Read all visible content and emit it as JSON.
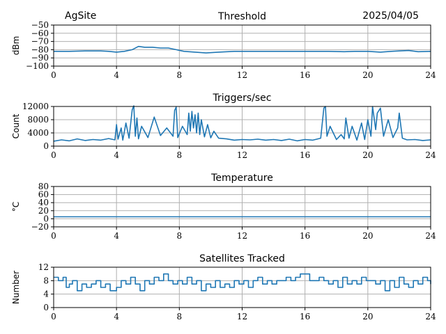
{
  "header": {
    "site": "AgSite",
    "date": "2025/04/05"
  },
  "chart_data": [
    {
      "type": "line",
      "title": "Threshold",
      "ylabel": "dBm",
      "xlim": [
        0,
        24
      ],
      "ylim": [
        -100,
        -50
      ],
      "xticks": [
        0,
        4,
        8,
        12,
        16,
        20,
        24
      ],
      "yticks": [
        -100,
        -90,
        -80,
        -70,
        -60,
        -50
      ],
      "ytick_labels": [
        "−100",
        "−90",
        "−80",
        "−70",
        "−60",
        "−50"
      ],
      "grid": true,
      "color": "#1f77b4",
      "series": [
        {
          "x": [
            0,
            1,
            2,
            3,
            3.5,
            4,
            4.5,
            5,
            5.4,
            5.8,
            6.3,
            6.8,
            7.3,
            7.8,
            8.3,
            9,
            9.7,
            10.5,
            11.5,
            12.5,
            13.5,
            14.5,
            15.5,
            16.5,
            17.5,
            18.5,
            19.2,
            20,
            20.8,
            21.5,
            22,
            22.6,
            23.2,
            24
          ],
          "y": [
            -82,
            -82,
            -81.5,
            -81.5,
            -82,
            -83,
            -82,
            -80,
            -76,
            -77,
            -77,
            -78,
            -78,
            -80,
            -82,
            -83,
            -84,
            -83,
            -82,
            -82,
            -82,
            -82,
            -82,
            -82,
            -82,
            -82.5,
            -82,
            -82,
            -83,
            -82,
            -81.5,
            -81,
            -82.5,
            -82
          ]
        }
      ]
    },
    {
      "type": "line",
      "title": "Triggers/sec",
      "ylabel": "Count",
      "xlim": [
        0,
        24
      ],
      "ylim": [
        0,
        12000
      ],
      "xticks": [
        0,
        4,
        8,
        12,
        16,
        20,
        24
      ],
      "yticks": [
        0,
        4000,
        8000,
        12000
      ],
      "ytick_labels": [
        "0",
        "4000",
        "8000",
        "12000"
      ],
      "grid": true,
      "color": "#1f77b4",
      "series": [
        {
          "x": [
            0,
            0.5,
            1,
            1.5,
            2,
            2.5,
            3,
            3.5,
            3.9,
            4.0,
            4.1,
            4.3,
            4.4,
            4.6,
            4.8,
            5.0,
            5.1,
            5.2,
            5.3,
            5.4,
            5.6,
            6.0,
            6.4,
            6.8,
            7.2,
            7.6,
            7.7,
            7.8,
            7.9,
            8.2,
            8.5,
            8.6,
            8.7,
            8.8,
            8.9,
            9.0,
            9.1,
            9.2,
            9.3,
            9.4,
            9.6,
            9.8,
            10.0,
            10.2,
            10.5,
            11,
            11.5,
            12,
            12.5,
            13,
            13.5,
            14,
            14.5,
            15,
            15.5,
            16,
            16.5,
            17,
            17.2,
            17.3,
            17.4,
            17.6,
            18,
            18.3,
            18.5,
            18.6,
            18.8,
            19.0,
            19.3,
            19.6,
            19.8,
            20.0,
            20.2,
            20.3,
            20.5,
            20.6,
            20.8,
            21.0,
            21.3,
            21.6,
            21.9,
            22.0,
            22.2,
            22.5,
            23,
            23.5,
            24
          ],
          "y": [
            1500,
            1900,
            1600,
            2200,
            1700,
            2000,
            1800,
            2300,
            1900,
            6500,
            2100,
            5500,
            1800,
            7000,
            2400,
            11000,
            12200,
            3000,
            8500,
            2200,
            6000,
            2600,
            8800,
            3200,
            5500,
            3000,
            10800,
            11800,
            2600,
            6000,
            3500,
            10000,
            4500,
            10500,
            5500,
            9500,
            4000,
            10000,
            3500,
            8000,
            2800,
            6500,
            2500,
            4500,
            2400,
            2200,
            1800,
            2000,
            1900,
            2100,
            1800,
            2000,
            1700,
            2100,
            1600,
            2000,
            1800,
            2400,
            11500,
            12000,
            3000,
            6000,
            2000,
            3500,
            2200,
            8500,
            2400,
            6000,
            1800,
            7000,
            2000,
            8000,
            3000,
            12000,
            5000,
            10000,
            11500,
            3000,
            8000,
            2600,
            5500,
            10000,
            2400,
            1900,
            2000,
            1700,
            1900
          ]
        }
      ]
    },
    {
      "type": "line",
      "title": "Temperature",
      "ylabel": "°C",
      "xlim": [
        0,
        24
      ],
      "ylim": [
        -20,
        80
      ],
      "xticks": [
        0,
        4,
        8,
        12,
        16,
        20,
        24
      ],
      "yticks": [
        -20,
        0,
        20,
        40,
        60,
        80
      ],
      "ytick_labels": [
        "−20",
        "0",
        "20",
        "40",
        "60",
        "80"
      ],
      "grid": true,
      "color": "#1f77b4",
      "series": [
        {
          "x": [
            0,
            24
          ],
          "y": [
            5,
            5
          ]
        }
      ]
    },
    {
      "type": "line",
      "title": "Satellites Tracked",
      "ylabel": "Number",
      "xlim": [
        0,
        24
      ],
      "ylim": [
        0,
        12
      ],
      "xticks": [
        0,
        4,
        8,
        12,
        16,
        20,
        24
      ],
      "yticks": [
        0,
        4,
        8,
        12
      ],
      "ytick_labels": [
        "0",
        "4",
        "8",
        "12"
      ],
      "grid": true,
      "step": true,
      "color": "#1f77b4",
      "series": [
        {
          "x": [
            0,
            0.3,
            0.6,
            0.8,
            1.0,
            1.2,
            1.5,
            1.8,
            2.1,
            2.4,
            2.7,
            3.0,
            3.3,
            3.6,
            4.0,
            4.3,
            4.6,
            4.9,
            5.2,
            5.5,
            5.8,
            6.1,
            6.4,
            6.7,
            7.0,
            7.3,
            7.6,
            7.9,
            8.2,
            8.5,
            8.8,
            9.1,
            9.4,
            9.7,
            10.0,
            10.3,
            10.6,
            10.9,
            11.2,
            11.5,
            11.8,
            12.1,
            12.4,
            12.7,
            13.0,
            13.3,
            13.6,
            13.9,
            14.2,
            14.5,
            14.8,
            15.1,
            15.4,
            15.7,
            16.0,
            16.3,
            16.6,
            16.9,
            17.2,
            17.5,
            17.8,
            18.1,
            18.4,
            18.7,
            19.0,
            19.3,
            19.6,
            19.9,
            20.2,
            20.5,
            20.8,
            21.1,
            21.4,
            21.7,
            22.0,
            22.3,
            22.6,
            22.9,
            23.2,
            23.5,
            23.8,
            24
          ],
          "y": [
            9,
            8,
            9,
            6,
            7,
            8,
            5,
            7,
            6,
            7,
            8,
            6,
            7,
            5,
            6,
            8,
            7,
            9,
            7,
            5,
            8,
            7,
            9,
            8,
            10,
            8,
            7,
            8,
            7,
            9,
            7,
            8,
            5,
            7,
            6,
            8,
            6,
            7,
            6,
            8,
            7,
            8,
            6,
            8,
            9,
            7,
            8,
            7,
            8,
            8,
            9,
            8,
            9,
            10,
            10,
            8,
            8,
            9,
            8,
            7,
            8,
            6,
            9,
            7,
            8,
            7,
            9,
            8,
            8,
            7,
            8,
            5,
            8,
            6,
            9,
            7,
            6,
            8,
            7,
            9,
            8,
            7
          ]
        }
      ]
    }
  ]
}
